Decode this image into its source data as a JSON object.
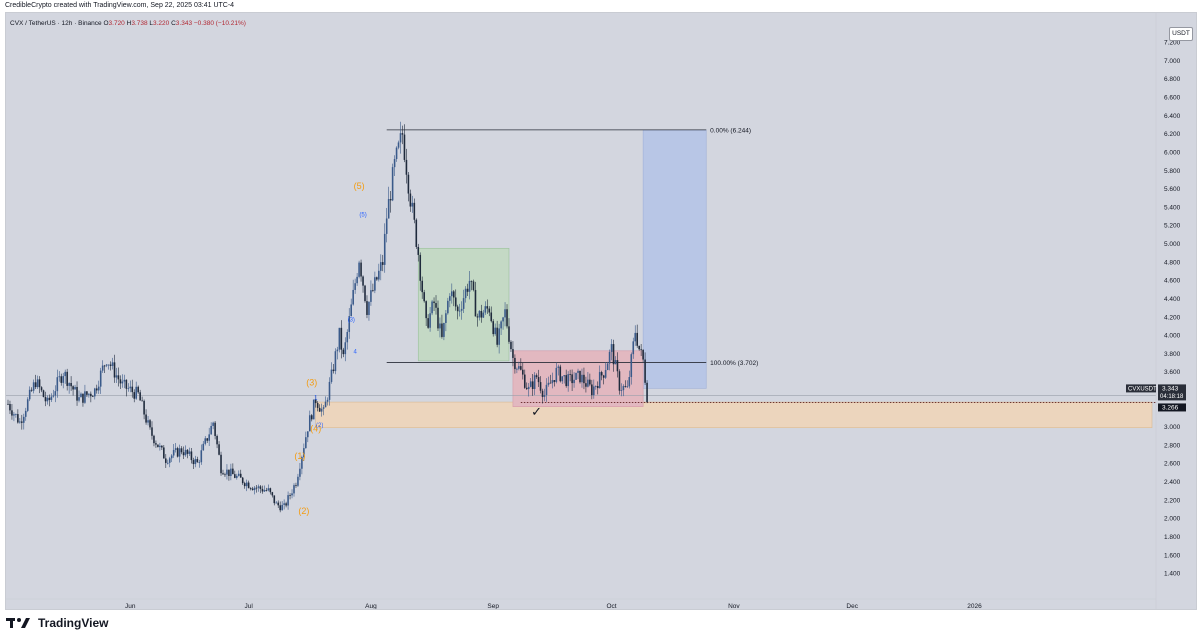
{
  "credit": "CredibleCrypto created with TradingView.com, Sep 22, 2025 03:41 UTC-4",
  "brand": "TradingView",
  "currency_button": "USDT",
  "colors": {
    "background": "#d3d6df",
    "candle": "#1f2a3c",
    "candle_up": "#3a5a8a",
    "fib_line": "#2a2e39",
    "green_box": "#c4d9c5",
    "red_box": "#e2b8c0",
    "blue_box": "#b8c6e6",
    "orange_zone": "#ecd5bd",
    "wave_orange": "#f39c12",
    "wave_blue": "#2962ff"
  },
  "chart_data": {
    "type": "candlestick",
    "title": "CVX / TetherUS · 12h · Binance",
    "ohlc": {
      "open_label": "O",
      "open": "3.720",
      "high_label": "H",
      "high": "3.738",
      "low_label": "L",
      "low": "3.220",
      "close_label": "C",
      "close": "3.343",
      "change": "−0.380 (−10.21%)"
    },
    "y_ticks": [
      "7.200",
      "7.000",
      "6.800",
      "6.600",
      "6.400",
      "6.200",
      "6.000",
      "5.800",
      "5.600",
      "5.400",
      "5.200",
      "5.000",
      "4.800",
      "4.600",
      "4.400",
      "4.200",
      "4.000",
      "3.800",
      "3.600",
      "3.400",
      "3.200",
      "3.000",
      "2.800",
      "2.600",
      "2.400",
      "2.200",
      "2.000",
      "1.800",
      "1.600",
      "1.400"
    ],
    "ylim": [
      1.25,
      7.28
    ],
    "x_ticks": [
      "Jun",
      "Jul",
      "Aug",
      "Sep",
      "Oct",
      "Nov",
      "Dec",
      "2026"
    ],
    "price_path": [
      {
        "date": "2025-05-01",
        "price": 3.25
      },
      {
        "date": "2025-05-04",
        "price": 3.05
      },
      {
        "date": "2025-05-08",
        "price": 3.5
      },
      {
        "date": "2025-05-11",
        "price": 3.25
      },
      {
        "date": "2025-05-15",
        "price": 3.6
      },
      {
        "date": "2025-05-19",
        "price": 3.3
      },
      {
        "date": "2025-05-23",
        "price": 3.4
      },
      {
        "date": "2025-05-26",
        "price": 3.75
      },
      {
        "date": "2025-05-30",
        "price": 3.45
      },
      {
        "date": "2025-06-03",
        "price": 3.35
      },
      {
        "date": "2025-06-06",
        "price": 2.95
      },
      {
        "date": "2025-06-10",
        "price": 2.65
      },
      {
        "date": "2025-06-14",
        "price": 2.75
      },
      {
        "date": "2025-06-18",
        "price": 2.6
      },
      {
        "date": "2025-06-22",
        "price": 3.05
      },
      {
        "date": "2025-06-24",
        "price": 2.55
      },
      {
        "date": "2025-06-28",
        "price": 2.45
      },
      {
        "date": "2025-07-02",
        "price": 2.35
      },
      {
        "date": "2025-07-06",
        "price": 2.3
      },
      {
        "date": "2025-07-08",
        "price": 2.15
      },
      {
        "date": "2025-07-10",
        "price": 2.12
      },
      {
        "date": "2025-07-13",
        "price": 2.4
      },
      {
        "date": "2025-07-16",
        "price": 3.0
      },
      {
        "date": "2025-07-18",
        "price": 3.3
      },
      {
        "date": "2025-07-20",
        "price": 3.15
      },
      {
        "date": "2025-07-22",
        "price": 3.55
      },
      {
        "date": "2025-07-24",
        "price": 4.0
      },
      {
        "date": "2025-07-25",
        "price": 3.75
      },
      {
        "date": "2025-07-27",
        "price": 4.3
      },
      {
        "date": "2025-07-29",
        "price": 4.85
      },
      {
        "date": "2025-07-31",
        "price": 4.3
      },
      {
        "date": "2025-08-02",
        "price": 4.55
      },
      {
        "date": "2025-08-04",
        "price": 4.8
      },
      {
        "date": "2025-08-05",
        "price": 5.3
      },
      {
        "date": "2025-08-07",
        "price": 5.85
      },
      {
        "date": "2025-08-09",
        "price": 6.2
      },
      {
        "date": "2025-08-11",
        "price": 5.5
      },
      {
        "date": "2025-08-13",
        "price": 4.9
      },
      {
        "date": "2025-08-15",
        "price": 4.1
      },
      {
        "date": "2025-08-17",
        "price": 4.35
      },
      {
        "date": "2025-08-19",
        "price": 3.95
      },
      {
        "date": "2025-08-21",
        "price": 4.5
      },
      {
        "date": "2025-08-23",
        "price": 4.25
      },
      {
        "date": "2025-08-26",
        "price": 4.6
      },
      {
        "date": "2025-08-28",
        "price": 4.2
      },
      {
        "date": "2025-08-31",
        "price": 4.3
      },
      {
        "date": "2025-09-02",
        "price": 3.9
      },
      {
        "date": "2025-09-04",
        "price": 4.25
      },
      {
        "date": "2025-09-06",
        "price": 3.75
      },
      {
        "date": "2025-09-08",
        "price": 3.6
      },
      {
        "date": "2025-09-10",
        "price": 3.4
      },
      {
        "date": "2025-09-12",
        "price": 3.55
      },
      {
        "date": "2025-09-14",
        "price": 3.35
      },
      {
        "date": "2025-09-17",
        "price": 3.6
      },
      {
        "date": "2025-09-20",
        "price": 3.5
      },
      {
        "date": "2025-09-23",
        "price": 3.55
      },
      {
        "date": "2025-09-26",
        "price": 3.4
      },
      {
        "date": "2025-09-29",
        "price": 3.6
      },
      {
        "date": "2025-10-01",
        "price": 3.85
      },
      {
        "date": "2025-10-03",
        "price": 3.45
      },
      {
        "date": "2025-10-05",
        "price": 3.4
      },
      {
        "date": "2025-10-07",
        "price": 4.05
      },
      {
        "date": "2025-10-08",
        "price": 3.85
      },
      {
        "date": "2025-10-09",
        "price": 3.72
      },
      {
        "date": "2025-10-10",
        "price": 3.343
      }
    ],
    "annotations": {
      "fib_0": "0.00% (6.244)",
      "fib_100": "100.00% (3.702)",
      "fib_0_price": 6.244,
      "fib_100_price": 3.702,
      "symbol_tag": "CVXUSDT",
      "last_price": "3.343",
      "countdown": "04:18:18",
      "support_price": "3.266",
      "checkmark": "✓",
      "waves_orange": [
        {
          "label": "(1)",
          "date": "2025-07-14",
          "price": 2.65
        },
        {
          "label": "(2)",
          "date": "2025-07-15",
          "price": 2.05
        },
        {
          "label": "(3)",
          "date": "2025-07-17",
          "price": 3.45
        },
        {
          "label": "(4)",
          "date": "2025-07-18",
          "price": 2.95
        },
        {
          "label": "(5)",
          "date": "2025-07-29",
          "price": 5.6
        }
      ],
      "waves_blue": [
        {
          "label": "1",
          "date": "2025-07-17",
          "price": 3.3
        },
        {
          "label": "(2)",
          "date": "2025-07-18",
          "price": 3.0
        },
        {
          "label": "(3)",
          "date": "2025-07-26",
          "price": 4.15
        },
        {
          "label": "4",
          "date": "2025-07-27",
          "price": 3.8
        },
        {
          "label": "(5)",
          "date": "2025-07-29",
          "price": 5.3
        }
      ],
      "zones": {
        "green_box": {
          "from": "2025-08-13",
          "to": "2025-09-05",
          "top": 4.95,
          "bottom": 3.72
        },
        "red_box": {
          "from": "2025-09-06",
          "to": "2025-10-09",
          "top": 3.83,
          "bottom": 3.22
        },
        "blue_box": {
          "from": "2025-10-09",
          "to": "2025-10-25",
          "top": 6.244,
          "bottom": 3.42
        },
        "orange_zone": {
          "from": "2025-07-18",
          "to": "2026-02-15",
          "top": 3.27,
          "bottom": 2.99
        }
      }
    }
  }
}
